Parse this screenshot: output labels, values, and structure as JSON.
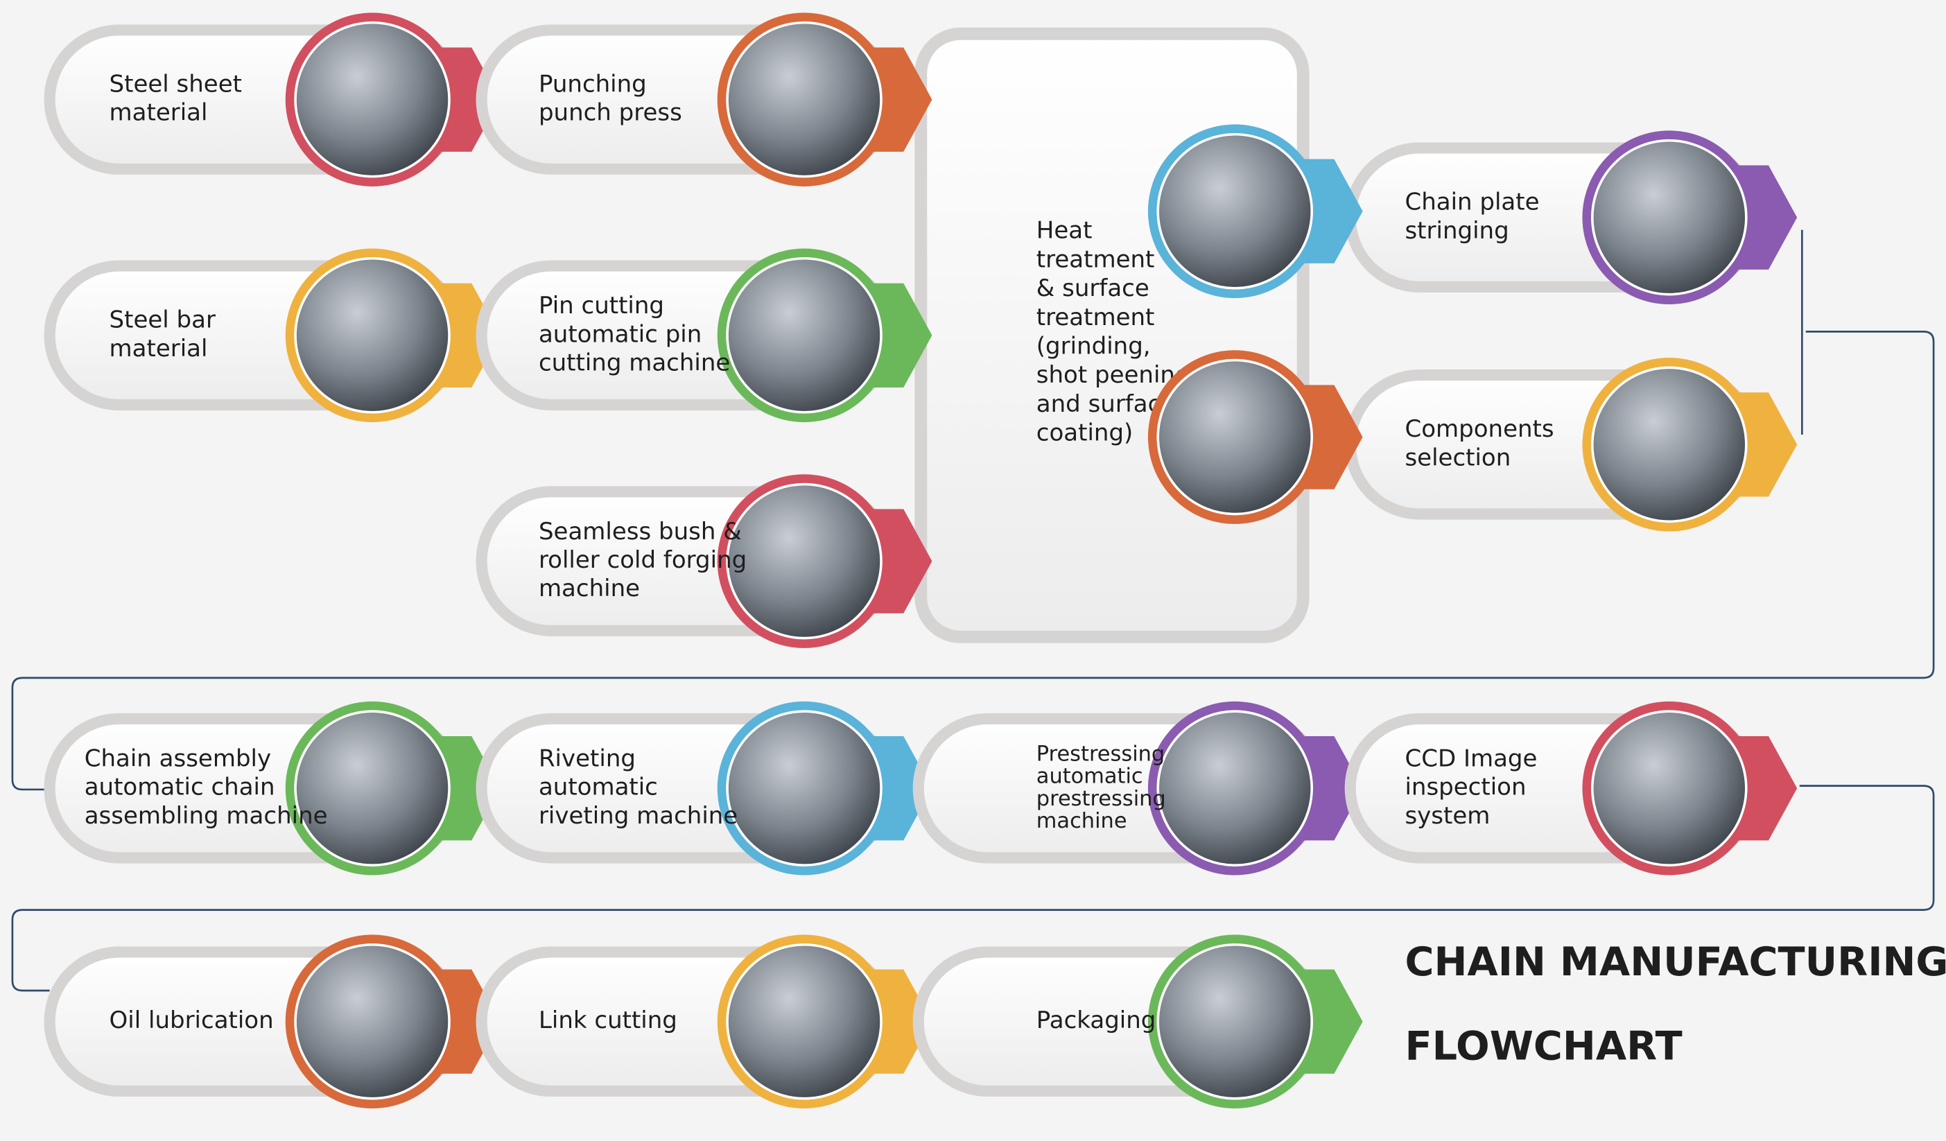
{
  "title": [
    "CHAIN MANUFACTURING",
    "FLOWCHART"
  ],
  "nodes": [
    {
      "lines": [
        "Steel sheet",
        "material"
      ]
    },
    {
      "lines": [
        "Punching",
        "punch press"
      ]
    },
    {
      "lines": [
        "Steel bar",
        "material"
      ]
    },
    {
      "lines": [
        "Pin cutting",
        "automatic pin",
        "cutting machine"
      ]
    },
    {
      "lines": [
        "Seamless bush &",
        "roller cold forging",
        "machine"
      ]
    },
    {
      "lines": [
        "Heat",
        "treatment",
        "& surface",
        "treatment",
        "(grinding,",
        "shot peening",
        "and surface",
        "coating)"
      ]
    },
    {
      "lines": [
        "Chain plate",
        "stringing"
      ]
    },
    {
      "lines": [
        "Components",
        "selection"
      ]
    },
    {
      "lines": [
        "Chain assembly",
        "automatic chain",
        "assembling machine"
      ]
    },
    {
      "lines": [
        "Riveting",
        "automatic",
        "riveting machine"
      ]
    },
    {
      "lines": [
        "Prestressing",
        "automatic",
        "prestressing",
        "machine"
      ]
    },
    {
      "lines": [
        "CCD Image",
        "inspection",
        "system"
      ]
    },
    {
      "lines": [
        "Oil lubrication"
      ]
    },
    {
      "lines": [
        "Link cutting"
      ]
    },
    {
      "lines": [
        "Packaging"
      ]
    }
  ]
}
